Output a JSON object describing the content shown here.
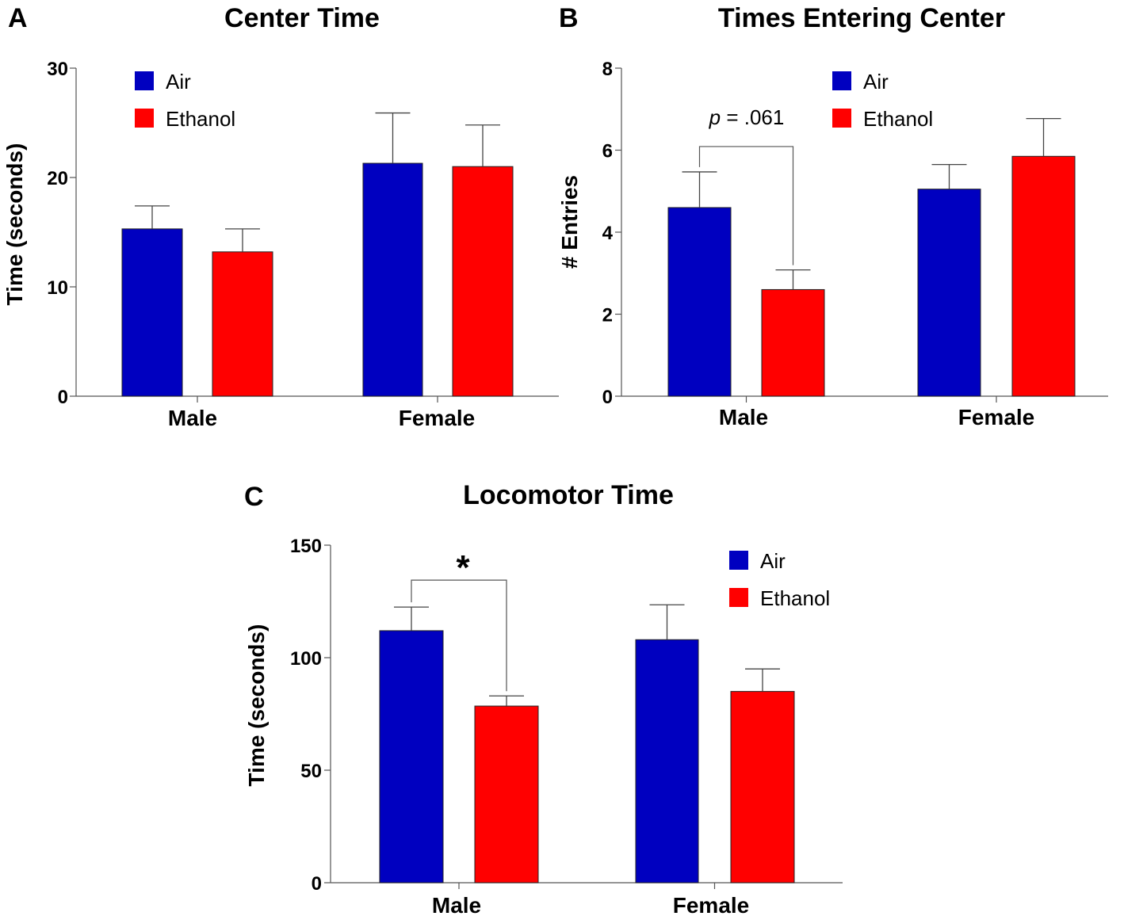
{
  "colors": {
    "Air": "#0000c0",
    "Ethanol": "#ff0000"
  },
  "chart_data": [
    {
      "panel": "A",
      "type": "bar",
      "title": "Center Time",
      "ylabel": "Time (seconds)",
      "xlabel": "",
      "ylim": [
        0,
        30
      ],
      "yticks": [
        0,
        10,
        20,
        30
      ],
      "categories": [
        "Male",
        "Female"
      ],
      "series": [
        {
          "name": "Air",
          "values": [
            15.3,
            21.3
          ],
          "errors": [
            2.1,
            4.6
          ]
        },
        {
          "name": "Ethanol",
          "values": [
            13.2,
            21.0
          ],
          "errors": [
            2.1,
            3.8
          ]
        }
      ],
      "legend": "top-left",
      "annotation": null
    },
    {
      "panel": "B",
      "type": "bar",
      "title": "Times Entering Center",
      "ylabel": "# Entries",
      "xlabel": "",
      "ylim": [
        0,
        8
      ],
      "yticks": [
        0,
        2,
        4,
        6,
        8
      ],
      "categories": [
        "Male",
        "Female"
      ],
      "series": [
        {
          "name": "Air",
          "values": [
            4.6,
            5.05
          ],
          "errors": [
            0.87,
            0.6
          ]
        },
        {
          "name": "Ethanol",
          "values": [
            2.6,
            5.85
          ],
          "errors": [
            0.48,
            0.92
          ]
        }
      ],
      "legend": "top-right",
      "annotation": {
        "text_italic": "p",
        "text": " = .061",
        "category": 0
      }
    },
    {
      "panel": "C",
      "type": "bar",
      "title": "Locomotor Time",
      "ylabel": "Time (seconds)",
      "xlabel": "",
      "ylim": [
        0,
        150
      ],
      "yticks": [
        0,
        50,
        100,
        150
      ],
      "categories": [
        "Male",
        "Female"
      ],
      "series": [
        {
          "name": "Air",
          "values": [
            112,
            108
          ],
          "errors": [
            10.5,
            15.5
          ]
        },
        {
          "name": "Ethanol",
          "values": [
            78.5,
            85
          ],
          "errors": [
            4.5,
            10
          ]
        }
      ],
      "legend": "top-right",
      "annotation": {
        "text": "*",
        "category": 0
      }
    }
  ]
}
